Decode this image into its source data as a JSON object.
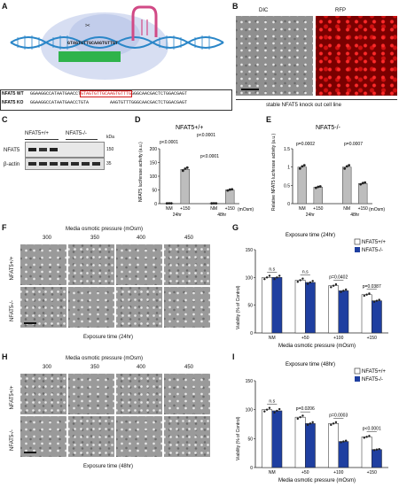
{
  "panels": {
    "A": "A",
    "B": "B",
    "C": "C",
    "D": "D",
    "E": "E",
    "F": "F",
    "G": "G",
    "H": "H",
    "I": "I"
  },
  "panelA": {
    "guide_seq": "GTAGTGTTGCAAGTGTTGT",
    "wt_label": "NFAT5 WT",
    "ko_label": "NFAT5 KO",
    "wt_seq_a": "GGAAGGCCATAATGAACCT",
    "wt_seq_mid": "GTAGTGTTGCAAGTGTTTG",
    "wt_seq_b": "GGGCAACGACTCTGGACGAGT",
    "ko_seq_a": "GGAAGGCCATAATGAACCTGTA",
    "ko_seq_b": "AAGTGTTTGGGCAACGACTCTGGACGAGT"
  },
  "panelB": {
    "dic": "DIC",
    "rfp": "RFP",
    "caption": "stable NFAT5 knock out cell line"
  },
  "panelC": {
    "wt": "NFAT5+/+",
    "ko": "NFAT5-/-",
    "kda": "kDa",
    "nfat5": "NFAT5",
    "actin": "β-actin",
    "m150": "150",
    "m35": "35"
  },
  "panelD": {
    "title": "NFAT5+/+",
    "ylabel": "NFAT5 luciferase activity (a.u.)",
    "p1": "p<0.0001",
    "p2": "p<0.0001",
    "p3": "p<0.0001",
    "unit": "(mOsm)"
  },
  "panelE": {
    "title": "NFAT5-/-",
    "ylabel": "Relative NFAT5 luciferase activity (a.u.)",
    "p1": "p=0.0002",
    "p2": "p=0.0007",
    "unit": "(mOsm)"
  },
  "panelF": {
    "top": "Media osmotic pressure (mOsm)",
    "cols": [
      "300",
      "350",
      "400",
      "450"
    ],
    "rows": [
      "NFAT5+/+",
      "NFAT5-/-"
    ],
    "bottom": "Exposure time (24hr)"
  },
  "panelG": {
    "title": "Exposure time (24hr)",
    "ylabel": "Viability (% of Control)",
    "xlabel": "Media osmotic pressure (mOsm)",
    "legend": [
      "NFAT5+/+",
      "NFAT5-/-"
    ],
    "sig": [
      "n.s",
      "n.s",
      "p=0.0402",
      "p=0.0387"
    ]
  },
  "panelH": {
    "top": "Media osmotic pressure (mOsm)",
    "cols": [
      "300",
      "350",
      "400",
      "450"
    ],
    "rows": [
      "NFAT5+/+",
      "NFAT5-/-"
    ],
    "bottom": "Exposure time (48hr)"
  },
  "panelI": {
    "title": "Exposure time (48hr)",
    "ylabel": "Viability (% of Control)",
    "xlabel": "Media osmotic pressure (mOsm)",
    "legend": [
      "NFAT5+/+",
      "NFAT5-/-"
    ],
    "sig": [
      "n.s",
      "p=0.0206",
      "p=0.0003",
      "p<0.0001"
    ]
  },
  "colors": {
    "wt": "#ffffff",
    "ko": "#1f3fa0",
    "gray": "#bdbdbd",
    "red": "#d51b1b"
  },
  "chart_data": [
    {
      "type": "bar",
      "name_ref": "D",
      "categories": [
        "NM 24hr",
        "+150 24hr",
        "NM 48hr",
        "+150 48hr"
      ],
      "x_ticks": [
        "NM",
        "+150",
        "NM",
        "+150"
      ],
      "groups": [
        "24hr",
        "48hr"
      ],
      "values": [
        1,
        125,
        1,
        50
      ],
      "ylim": [
        0,
        200
      ],
      "yticks": [
        0,
        50,
        100,
        150,
        200
      ]
    },
    {
      "type": "bar",
      "name_ref": "E",
      "categories": [
        "NM 24hr",
        "+150 24hr",
        "NM 48hr",
        "+150 48hr"
      ],
      "x_ticks": [
        "NM",
        "+150",
        "NM",
        "+150"
      ],
      "groups": [
        "24hr",
        "48hr"
      ],
      "values": [
        1.0,
        0.45,
        1.0,
        0.55
      ],
      "ylim": [
        0,
        1.5
      ],
      "yticks": [
        0.0,
        0.5,
        1.0,
        1.5
      ]
    },
    {
      "type": "bar",
      "name_ref": "G",
      "categories": [
        "NM",
        "+50",
        "+100",
        "+150"
      ],
      "series": [
        {
          "name": "NFAT5+/+",
          "values": [
            100,
            95,
            85,
            69
          ]
        },
        {
          "name": "NFAT5-/-",
          "values": [
            100,
            91,
            76,
            58
          ]
        }
      ],
      "ylim": [
        0,
        150
      ],
      "yticks": [
        0,
        50,
        100,
        150
      ]
    },
    {
      "type": "bar",
      "name_ref": "I",
      "categories": [
        "NM",
        "+50",
        "+100",
        "+150"
      ],
      "series": [
        {
          "name": "NFAT5+/+",
          "values": [
            100,
            87,
            76,
            53
          ]
        },
        {
          "name": "NFAT5-/-",
          "values": [
            98,
            76,
            45,
            31
          ]
        }
      ],
      "ylim": [
        0,
        150
      ],
      "yticks": [
        0,
        50,
        100,
        150
      ]
    }
  ]
}
